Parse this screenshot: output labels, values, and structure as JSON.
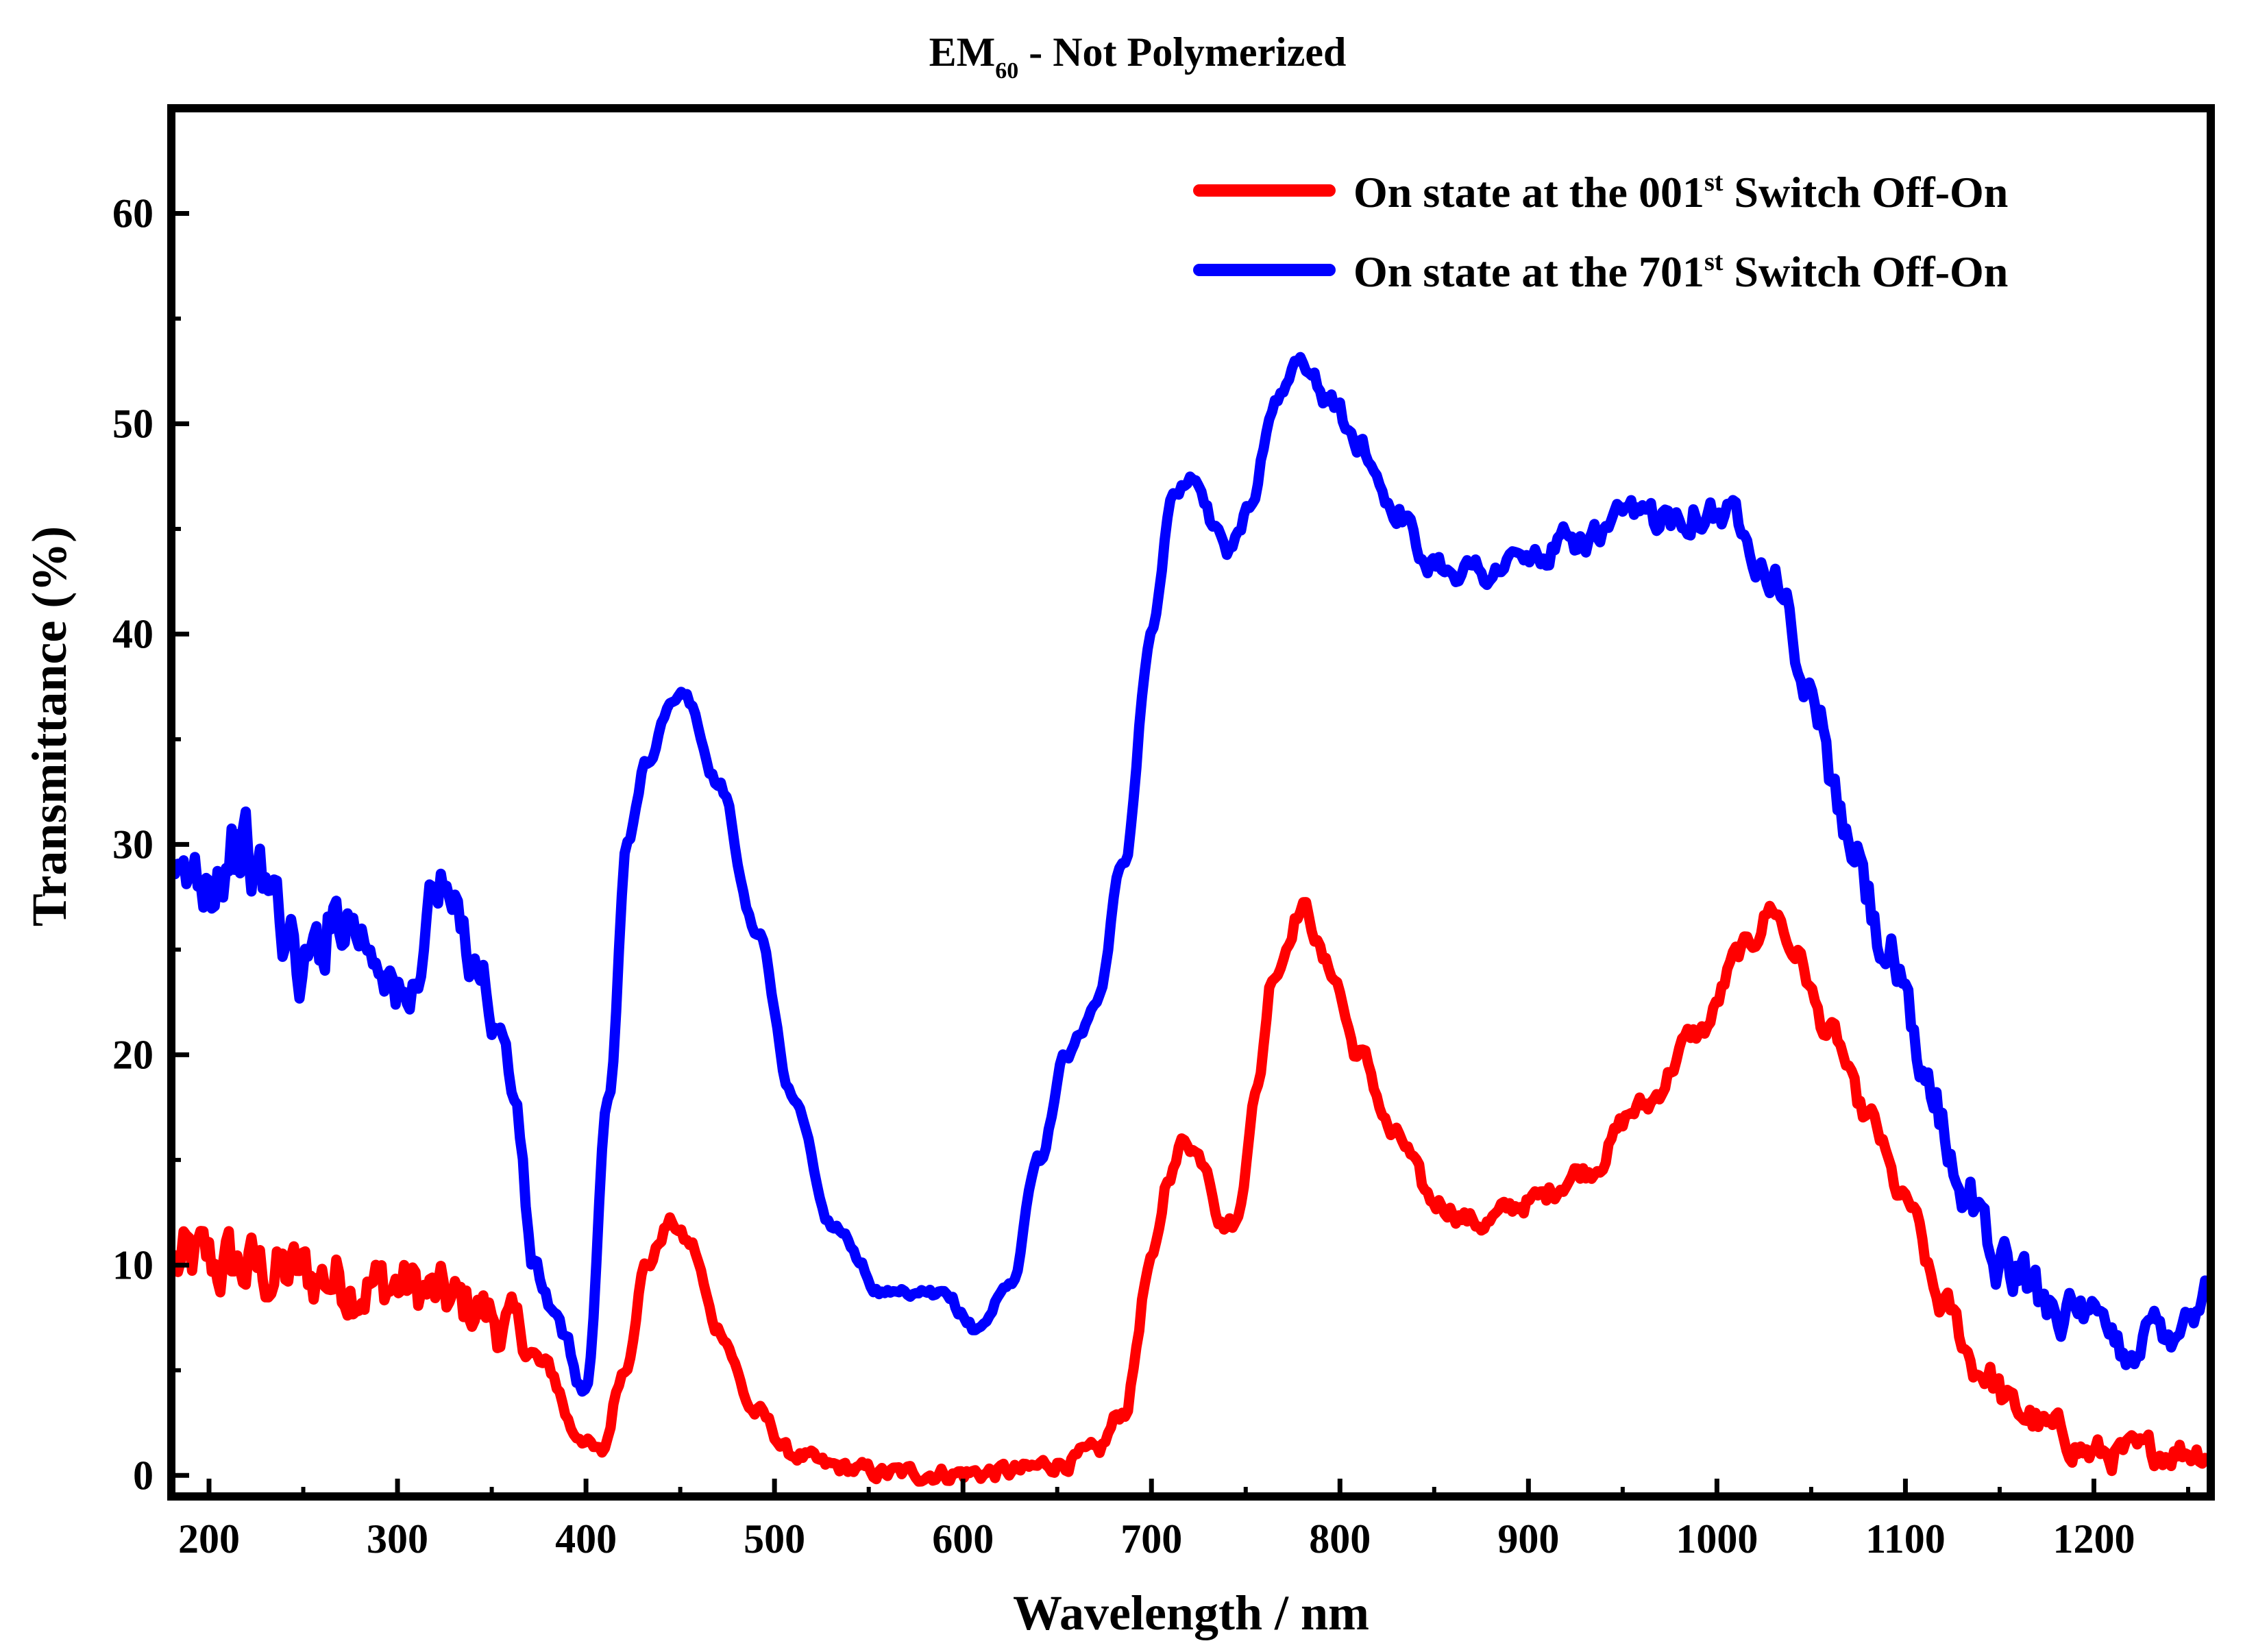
{
  "chart_data": {
    "type": "line",
    "title": "EM",
    "title_subscript": "60",
    "title_suffix": " - Not Polymerized",
    "xlabel": "Wavelength / nm",
    "ylabel": "Transmittance (%)",
    "xlim": [
      180,
      1262
    ],
    "ylim": [
      -1,
      65
    ],
    "xticks": [
      200,
      300,
      400,
      500,
      600,
      700,
      800,
      900,
      1000,
      1100,
      1200
    ],
    "yticks": [
      0,
      10,
      20,
      30,
      40,
      50,
      60
    ],
    "legend_position": "top-right",
    "series": [
      {
        "name": "On state at the 001st Switch Off-On",
        "label_prefix": "On state at the 001",
        "label_sup": "st",
        "label_suffix": " Switch Off-On",
        "color": "#ff0000",
        "noise": [
          [
            180,
            2.5
          ],
          [
            350,
            2.0
          ],
          [
            380,
            0.8
          ],
          [
            400,
            0.5
          ],
          [
            1100,
            0.8
          ],
          [
            1140,
            1.2
          ],
          [
            1262,
            1.0
          ]
        ],
        "x": [
          180,
          200,
          250,
          300,
          340,
          360,
          380,
          395,
          408,
          420,
          432,
          445,
          455,
          470,
          490,
          510,
          530,
          560,
          600,
          630,
          650,
          670,
          685,
          700,
          710,
          718,
          728,
          738,
          745,
          755,
          765,
          780,
          795,
          810,
          830,
          850,
          875,
          900,
          930,
          960,
          990,
          1015,
          1030,
          1040,
          1060,
          1080,
          1100,
          1120,
          1140,
          1160,
          1180,
          1200,
          1220,
          1240,
          1262
        ],
        "y": [
          10,
          10,
          9.5,
          9,
          8,
          7,
          5,
          2,
          1,
          5,
          10,
          12,
          11,
          7,
          3,
          1,
          0.4,
          0.1,
          0.1,
          0.2,
          0.6,
          1,
          3,
          10,
          14.5,
          16,
          15,
          12,
          12,
          18,
          24,
          27,
          24,
          20,
          16,
          13,
          12,
          13,
          14.5,
          17.5,
          21,
          25,
          27,
          25,
          21,
          17,
          13,
          8,
          5,
          3,
          2,
          1,
          1,
          1.2,
          1.2
        ]
      },
      {
        "name": "On state at the 701st Switch Off-On",
        "label_prefix": "On state at the 701",
        "label_sup": "st",
        "label_suffix": " Switch Off-On",
        "color": "#0000ff",
        "noise": [
          [
            180,
            3.0
          ],
          [
            340,
            2.0
          ],
          [
            360,
            1.0
          ],
          [
            420,
            0.4
          ],
          [
            700,
            0.4
          ],
          [
            760,
            0.6
          ],
          [
            900,
            1.0
          ],
          [
            1000,
            1.2
          ],
          [
            1100,
            1.8
          ],
          [
            1262,
            1.5
          ]
        ],
        "x": [
          180,
          200,
          215,
          230,
          250,
          270,
          290,
          305,
          320,
          340,
          355,
          362,
          372,
          385,
          400,
          412,
          422,
          432,
          445,
          452,
          470,
          490,
          510,
          530,
          560,
          590,
          607,
          625,
          640,
          655,
          670,
          685,
          700,
          712,
          722,
          735,
          742,
          752,
          765,
          780,
          795,
          810,
          830,
          845,
          875,
          900,
          930,
          960,
          990,
          1010,
          1030,
          1050,
          1070,
          1090,
          1110,
          1130,
          1150,
          1175,
          1200,
          1215,
          1235,
          1255,
          1262
        ],
        "y": [
          27,
          29,
          30,
          28,
          24,
          27,
          25,
          22,
          28,
          25,
          21,
          18,
          10,
          7,
          4,
          18,
          30,
          34,
          36.5,
          37,
          33,
          26,
          18,
          12,
          8.5,
          8.5,
          7,
          9,
          15,
          20,
          22,
          29,
          40,
          47,
          47.5,
          45,
          44,
          46,
          51,
          53,
          51,
          49,
          46,
          43.5,
          43,
          43.5,
          44.5,
          45.5,
          46,
          45.5,
          43,
          37,
          30,
          25,
          19,
          14,
          10,
          8.5,
          7,
          6,
          7,
          8,
          10
        ]
      }
    ]
  }
}
